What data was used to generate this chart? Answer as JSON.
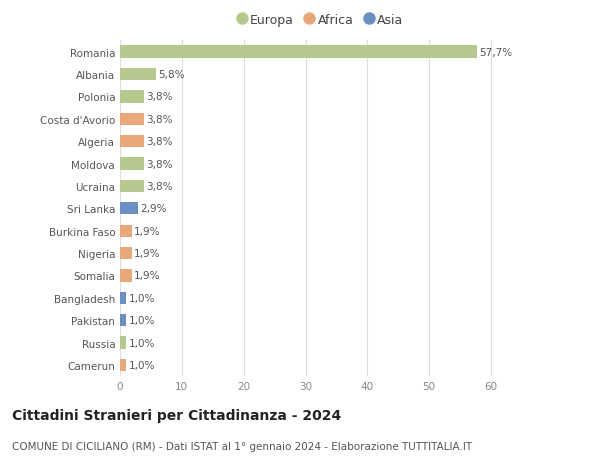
{
  "countries": [
    "Romania",
    "Albania",
    "Polonia",
    "Costa d'Avorio",
    "Algeria",
    "Moldova",
    "Ucraina",
    "Sri Lanka",
    "Burkina Faso",
    "Nigeria",
    "Somalia",
    "Bangladesh",
    "Pakistan",
    "Russia",
    "Camerun"
  ],
  "values": [
    57.7,
    5.8,
    3.8,
    3.8,
    3.8,
    3.8,
    3.8,
    2.9,
    1.9,
    1.9,
    1.9,
    1.0,
    1.0,
    1.0,
    1.0
  ],
  "labels": [
    "57,7%",
    "5,8%",
    "3,8%",
    "3,8%",
    "3,8%",
    "3,8%",
    "3,8%",
    "2,9%",
    "1,9%",
    "1,9%",
    "1,9%",
    "1,0%",
    "1,0%",
    "1,0%",
    "1,0%"
  ],
  "continents": [
    "Europa",
    "Europa",
    "Europa",
    "Africa",
    "Africa",
    "Europa",
    "Europa",
    "Asia",
    "Africa",
    "Africa",
    "Africa",
    "Asia",
    "Asia",
    "Europa",
    "Africa"
  ],
  "colors": {
    "Europa": "#b5c98e",
    "Africa": "#e8a87c",
    "Asia": "#6b8fc2"
  },
  "title1": "Cittadini Stranieri per Cittadinanza - 2024",
  "title2": "COMUNE DI CICILIANO (RM) - Dati ISTAT al 1° gennaio 2024 - Elaborazione TUTTITALIA.IT",
  "xlim": [
    0,
    65
  ],
  "xticks": [
    0,
    10,
    20,
    30,
    40,
    50,
    60
  ],
  "background_color": "#ffffff",
  "grid_color": "#dddddd",
  "bar_height": 0.55,
  "label_fontsize": 7.5,
  "tick_fontsize": 7.5,
  "title1_fontsize": 10,
  "title2_fontsize": 7.5
}
